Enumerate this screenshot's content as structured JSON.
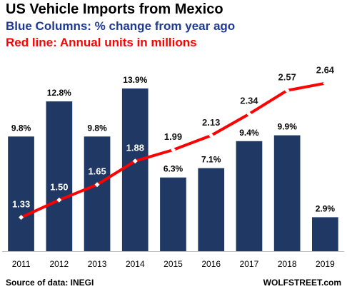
{
  "title": "US Vehicle Imports from Mexico",
  "subtitle_blue": "Blue Columns: % change from year ago",
  "subtitle_red": "Red line: Annual units in millions",
  "source": "Source of data: INEGI",
  "brand": "WOLFSTREET.com",
  "colors": {
    "bar": "#203864",
    "line": "#ff0000",
    "marker": "#ffffff",
    "subtitle_blue": "#1f3a93",
    "subtitle_red": "#ff0000",
    "label_line": "#1a1a1a"
  },
  "chart_data": {
    "type": "bar",
    "categories": [
      "2011",
      "2012",
      "2013",
      "2014",
      "2015",
      "2016",
      "2017",
      "2018",
      "2019"
    ],
    "series": [
      {
        "type": "bar",
        "values": [
          9.8,
          12.8,
          9.8,
          13.9,
          6.3,
          7.1,
          9.4,
          9.9,
          2.9
        ],
        "labels": [
          "9.8%",
          "12.8%",
          "9.8%",
          "13.9%",
          "6.3%",
          "7.1%",
          "9.4%",
          "9.9%",
          "2.9%"
        ]
      },
      {
        "type": "line",
        "values": [
          1.33,
          1.5,
          1.65,
          1.88,
          1.99,
          2.13,
          2.34,
          2.57,
          2.64
        ],
        "labels": [
          "1.33",
          "1.50",
          "1.65",
          "1.88",
          "1.99",
          "2.13",
          "2.34",
          "2.57",
          "2.64"
        ]
      }
    ],
    "bar_axis_range": [
      0,
      16.2
    ],
    "line_axis_range": [
      1.0,
      2.84
    ],
    "grid": false,
    "legend": "none"
  }
}
